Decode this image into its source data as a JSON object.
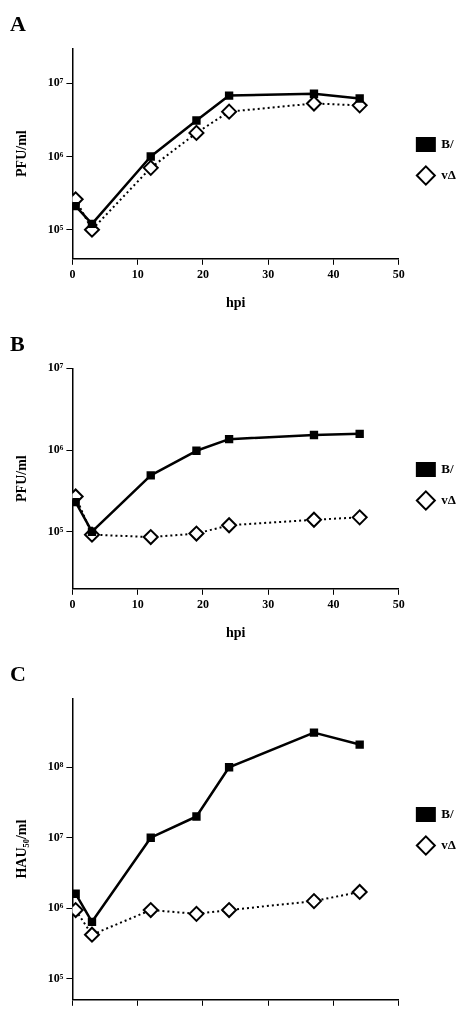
{
  "chart_data": [
    {
      "type": "line",
      "title": "A",
      "xlabel": "hpi",
      "ylabel": "PFU/ml",
      "log": "y",
      "grid": false,
      "legend": "right",
      "x": [
        0.5,
        3,
        12,
        19,
        24,
        37,
        44
      ],
      "xlim": [
        0,
        50
      ],
      "xticks": [
        0,
        10,
        20,
        30,
        40,
        50
      ],
      "ylim": [
        40000,
        30000000
      ],
      "yticks": [
        {
          "value": 100000,
          "label": "10⁵"
        },
        {
          "value": 1000000,
          "label": "10⁶"
        },
        {
          "value": 10000000,
          "label": "10⁷"
        }
      ],
      "series": [
        {
          "name": "B/",
          "color": "#000000",
          "marker": "square",
          "line_style": "solid",
          "values": [
            210000,
            120000,
            1000000,
            3100000,
            6800000,
            7200000,
            6200000
          ]
        },
        {
          "name": "vΔ",
          "color": "#000000",
          "marker": "diamond",
          "line_style": "dotted",
          "values": [
            260000,
            100000,
            700000,
            2100000,
            4100000,
            5300000,
            5000000
          ]
        }
      ]
    },
    {
      "type": "line",
      "title": "B",
      "xlabel": "hpi",
      "ylabel": "PFU/ml",
      "log": "y",
      "grid": false,
      "legend": "right",
      "x": [
        0.5,
        3,
        12,
        19,
        24,
        37,
        44
      ],
      "xlim": [
        0,
        50
      ],
      "xticks": [
        0,
        10,
        20,
        30,
        40,
        50
      ],
      "ylim": [
        20000,
        10000000
      ],
      "yticks": [
        {
          "value": 100000,
          "label": "10⁵"
        },
        {
          "value": 1000000,
          "label": "10⁶"
        },
        {
          "value": 10000000,
          "label": "10⁷"
        }
      ],
      "series": [
        {
          "name": "B/",
          "color": "#000000",
          "marker": "square",
          "line_style": "solid",
          "values": [
            230000,
            100000,
            490000,
            980000,
            1360000,
            1530000,
            1580000
          ]
        },
        {
          "name": "vΔ",
          "color": "#000000",
          "marker": "diamond",
          "line_style": "dotted",
          "values": [
            270000,
            92000,
            86000,
            95000,
            120000,
            140000,
            150000
          ]
        }
      ]
    },
    {
      "type": "line",
      "title": "C",
      "ylabel": "HAU₅₀/ml",
      "log": "y",
      "grid": false,
      "legend": "right",
      "tick_labels": "y",
      "x": [
        0.5,
        3,
        12,
        19,
        24,
        37,
        44
      ],
      "xlim": [
        0,
        50
      ],
      "xticks": [
        0,
        10,
        20,
        30,
        40,
        50
      ],
      "ylim": [
        50000,
        950000000
      ],
      "yticks": [
        {
          "value": 100000,
          "label": "10⁵"
        },
        {
          "value": 1000000,
          "label": "10⁶"
        },
        {
          "value": 10000000,
          "label": "10⁷"
        },
        {
          "value": 100000000,
          "label": "10⁸"
        }
      ],
      "series": [
        {
          "name": "B/",
          "color": "#000000",
          "marker": "square",
          "line_style": "solid",
          "values": [
            1600000,
            640000,
            10000000,
            20000000,
            100000000,
            310000000,
            210000000
          ]
        },
        {
          "name": "vΔ",
          "color": "#000000",
          "marker": "diamond",
          "line_style": "dotted",
          "values": [
            940000,
            420000,
            940000,
            830000,
            940000,
            1260000,
            1700000
          ]
        }
      ]
    }
  ]
}
